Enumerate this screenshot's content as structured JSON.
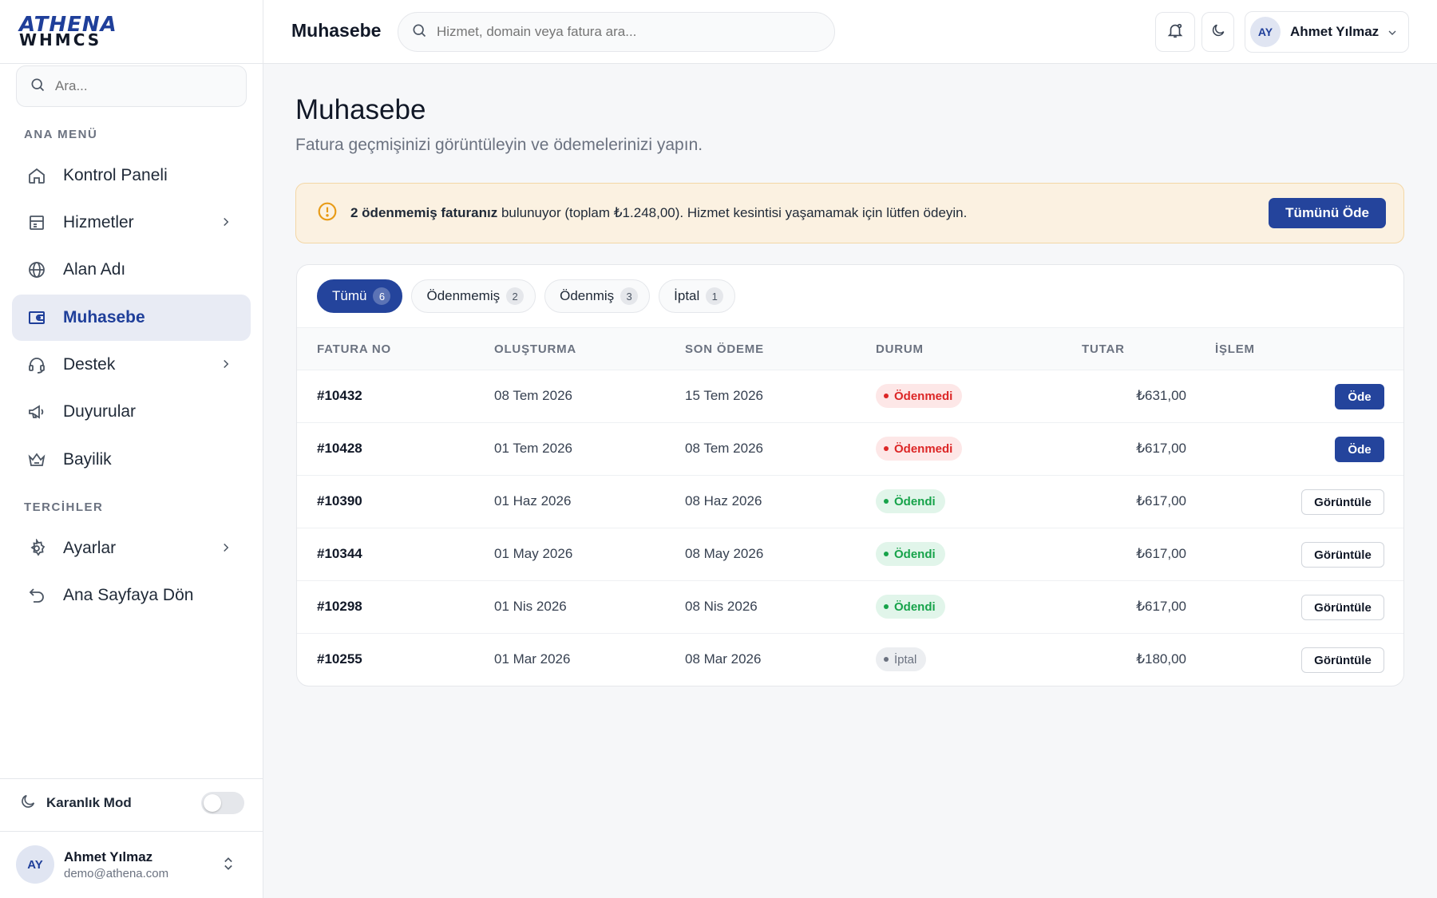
{
  "brand": {
    "line1": "ATHENA",
    "line2": "WHMCS"
  },
  "sidebar": {
    "search_placeholder": "Ara...",
    "section_main": "ANA MENÜ",
    "section_prefs": "TERCİHLER",
    "items": [
      {
        "label": "Kontrol Paneli",
        "icon": "home-icon"
      },
      {
        "label": "Hizmetler",
        "icon": "services-icon"
      },
      {
        "label": "Alan Adı",
        "icon": "globe-icon"
      },
      {
        "label": "Muhasebe",
        "icon": "wallet-icon"
      },
      {
        "label": "Destek",
        "icon": "headset-icon"
      },
      {
        "label": "Duyurular",
        "icon": "megaphone-icon"
      },
      {
        "label": "Bayilik",
        "icon": "crown-icon"
      },
      {
        "label": "Ayarlar",
        "icon": "gear-icon"
      },
      {
        "label": "Ana Sayfaya Dön",
        "icon": "undo-icon"
      }
    ],
    "dark_mode_label": "Karanlık Mod",
    "user": {
      "initials": "AY",
      "name": "Ahmet Yılmaz",
      "email": "demo@athena.com"
    }
  },
  "topbar": {
    "title": "Muhasebe",
    "search_placeholder": "Hizmet, domain veya fatura ara...",
    "user": {
      "initials": "AY",
      "name": "Ahmet Yılmaz"
    }
  },
  "main": {
    "title": "Muhasebe",
    "subtitle": "Fatura geçmişinizi görüntüleyin ve ödemelerinizi yapın.",
    "alert": {
      "bold": "2 ödenmemiş faturanız",
      "text": " bulunuyor (toplam ₺1.248,00). Hizmet kesintisi yaşamamak için lütfen ödeyin.",
      "button": "Tümünü Öde"
    },
    "tabs": [
      {
        "label": "Tümü",
        "count": "6"
      },
      {
        "label": "Ödenmemiş",
        "count": "2"
      },
      {
        "label": "Ödenmiş",
        "count": "3"
      },
      {
        "label": "İptal",
        "count": "1"
      }
    ],
    "columns": [
      "FATURA NO",
      "OLUŞTURMA",
      "SON ÖDEME",
      "DURUM",
      "TUTAR",
      "İŞLEM"
    ],
    "rows": [
      {
        "no": "#10432",
        "created": "08 Tem 2026",
        "due": "15 Tem 2026",
        "status": "Ödenmedi",
        "amount": "₺631,00",
        "action": "Öde"
      },
      {
        "no": "#10428",
        "created": "01 Tem 2026",
        "due": "08 Tem 2026",
        "status": "Ödenmedi",
        "amount": "₺617,00",
        "action": "Öde"
      },
      {
        "no": "#10390",
        "created": "01 Haz 2026",
        "due": "08 Haz 2026",
        "status": "Ödendi",
        "amount": "₺617,00",
        "action": "Görüntüle"
      },
      {
        "no": "#10344",
        "created": "01 May 2026",
        "due": "08 May 2026",
        "status": "Ödendi",
        "amount": "₺617,00",
        "action": "Görüntüle"
      },
      {
        "no": "#10298",
        "created": "01 Nis 2026",
        "due": "08 Nis 2026",
        "status": "Ödendi",
        "amount": "₺617,00",
        "action": "Görüntüle"
      },
      {
        "no": "#10255",
        "created": "01 Mar 2026",
        "due": "08 Mar 2026",
        "status": "İptal",
        "amount": "₺180,00",
        "action": "Görüntüle"
      }
    ]
  },
  "colors": {
    "accent": "#24449c",
    "alert_bg": "#fbf1e1",
    "unpaid": "#dc2626",
    "paid": "#16a34a"
  }
}
